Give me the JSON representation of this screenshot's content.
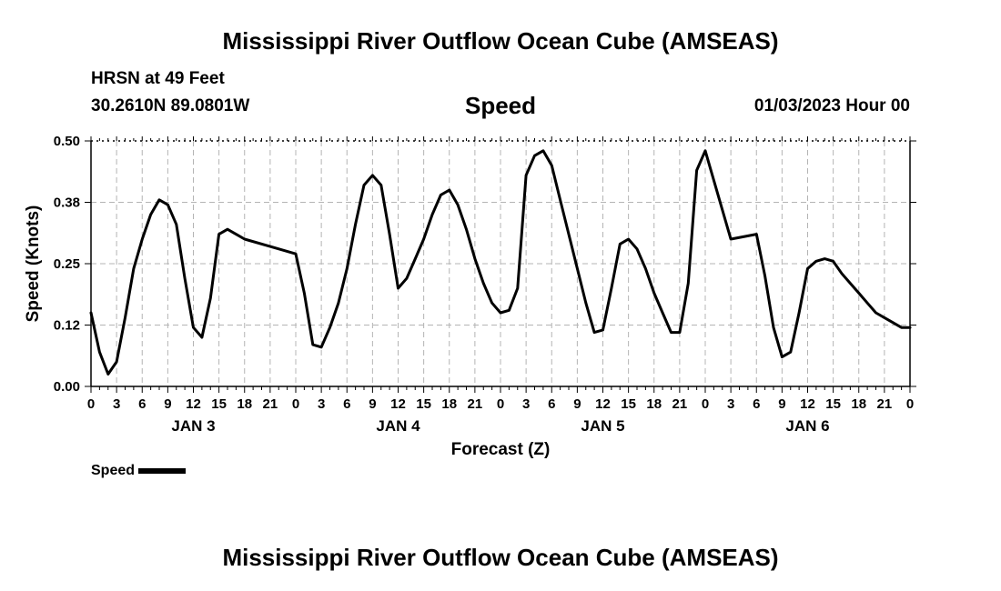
{
  "header": {
    "title": "Mississippi River Outflow Ocean Cube (AMSEAS)",
    "station": "HRSN at 49 Feet",
    "coords": "30.2610N  89.0801W",
    "subtitle": "Speed",
    "datetime": "01/03/2023 Hour 00"
  },
  "footer": {
    "title": "Mississippi River Outflow Ocean Cube (AMSEAS)"
  },
  "legend": {
    "label": "Speed"
  },
  "chart_data": {
    "type": "line",
    "title": "Speed",
    "xlabel": "Forecast (Z)",
    "ylabel": "Speed (Knots)",
    "ylim": [
      0,
      0.5
    ],
    "xlim": [
      0,
      96
    ],
    "yticks": [
      0.0,
      0.125,
      0.25,
      0.375,
      0.5
    ],
    "ytick_labels": [
      "0.00",
      "0.12",
      "0.25",
      "0.38",
      "0.50"
    ],
    "xticks": [
      0,
      3,
      6,
      9,
      12,
      15,
      18,
      21,
      24,
      27,
      30,
      33,
      36,
      39,
      42,
      45,
      48,
      51,
      54,
      57,
      60,
      63,
      66,
      69,
      72,
      75,
      78,
      81,
      84,
      87,
      90,
      93,
      96
    ],
    "xtick_labels": [
      "0",
      "3",
      "6",
      "9",
      "12",
      "15",
      "18",
      "21",
      "0",
      "3",
      "6",
      "9",
      "12",
      "15",
      "18",
      "21",
      "0",
      "3",
      "6",
      "9",
      "12",
      "15",
      "18",
      "21",
      "0",
      "3",
      "6",
      "9",
      "12",
      "15",
      "18",
      "21",
      "0"
    ],
    "day_labels": [
      {
        "label": "JAN 3",
        "hour": 12
      },
      {
        "label": "JAN 4",
        "hour": 36
      },
      {
        "label": "JAN 5",
        "hour": 60
      },
      {
        "label": "JAN 6",
        "hour": 84
      }
    ],
    "grid": true,
    "series": [
      {
        "name": "Speed",
        "color": "#000000",
        "x": [
          0,
          1,
          2,
          3,
          4,
          5,
          6,
          7,
          8,
          9,
          10,
          11,
          12,
          13,
          14,
          15,
          16,
          17,
          18,
          21,
          24,
          25,
          26,
          27,
          28,
          29,
          30,
          31,
          32,
          33,
          34,
          35,
          36,
          37,
          38,
          39,
          40,
          41,
          42,
          43,
          44,
          45,
          46,
          47,
          48,
          49,
          50,
          51,
          52,
          53,
          54,
          55,
          56,
          57,
          58,
          59,
          60,
          61,
          62,
          63,
          64,
          65,
          66,
          67,
          68,
          69,
          70,
          71,
          72,
          75,
          78,
          79,
          80,
          81,
          82,
          83,
          84,
          85,
          86,
          87,
          88,
          89,
          90,
          91,
          92,
          93,
          94,
          95,
          96
        ],
        "values": [
          0.15,
          0.07,
          0.025,
          0.05,
          0.14,
          0.24,
          0.3,
          0.35,
          0.38,
          0.37,
          0.33,
          0.22,
          0.12,
          0.1,
          0.18,
          0.31,
          0.32,
          0.31,
          0.3,
          0.285,
          0.27,
          0.19,
          0.085,
          0.08,
          0.12,
          0.17,
          0.24,
          0.33,
          0.41,
          0.43,
          0.41,
          0.31,
          0.2,
          0.22,
          0.26,
          0.3,
          0.35,
          0.39,
          0.4,
          0.37,
          0.32,
          0.26,
          0.21,
          0.17,
          0.15,
          0.155,
          0.2,
          0.43,
          0.47,
          0.48,
          0.45,
          0.38,
          0.31,
          0.24,
          0.17,
          0.11,
          0.115,
          0.2,
          0.29,
          0.3,
          0.28,
          0.24,
          0.19,
          0.15,
          0.11,
          0.11,
          0.21,
          0.44,
          0.48,
          0.3,
          0.31,
          0.225,
          0.12,
          0.06,
          0.07,
          0.15,
          0.24,
          0.255,
          0.26,
          0.255,
          0.23,
          0.21,
          0.19,
          0.17,
          0.15,
          0.14,
          0.13,
          0.12,
          0.12
        ]
      }
    ]
  }
}
